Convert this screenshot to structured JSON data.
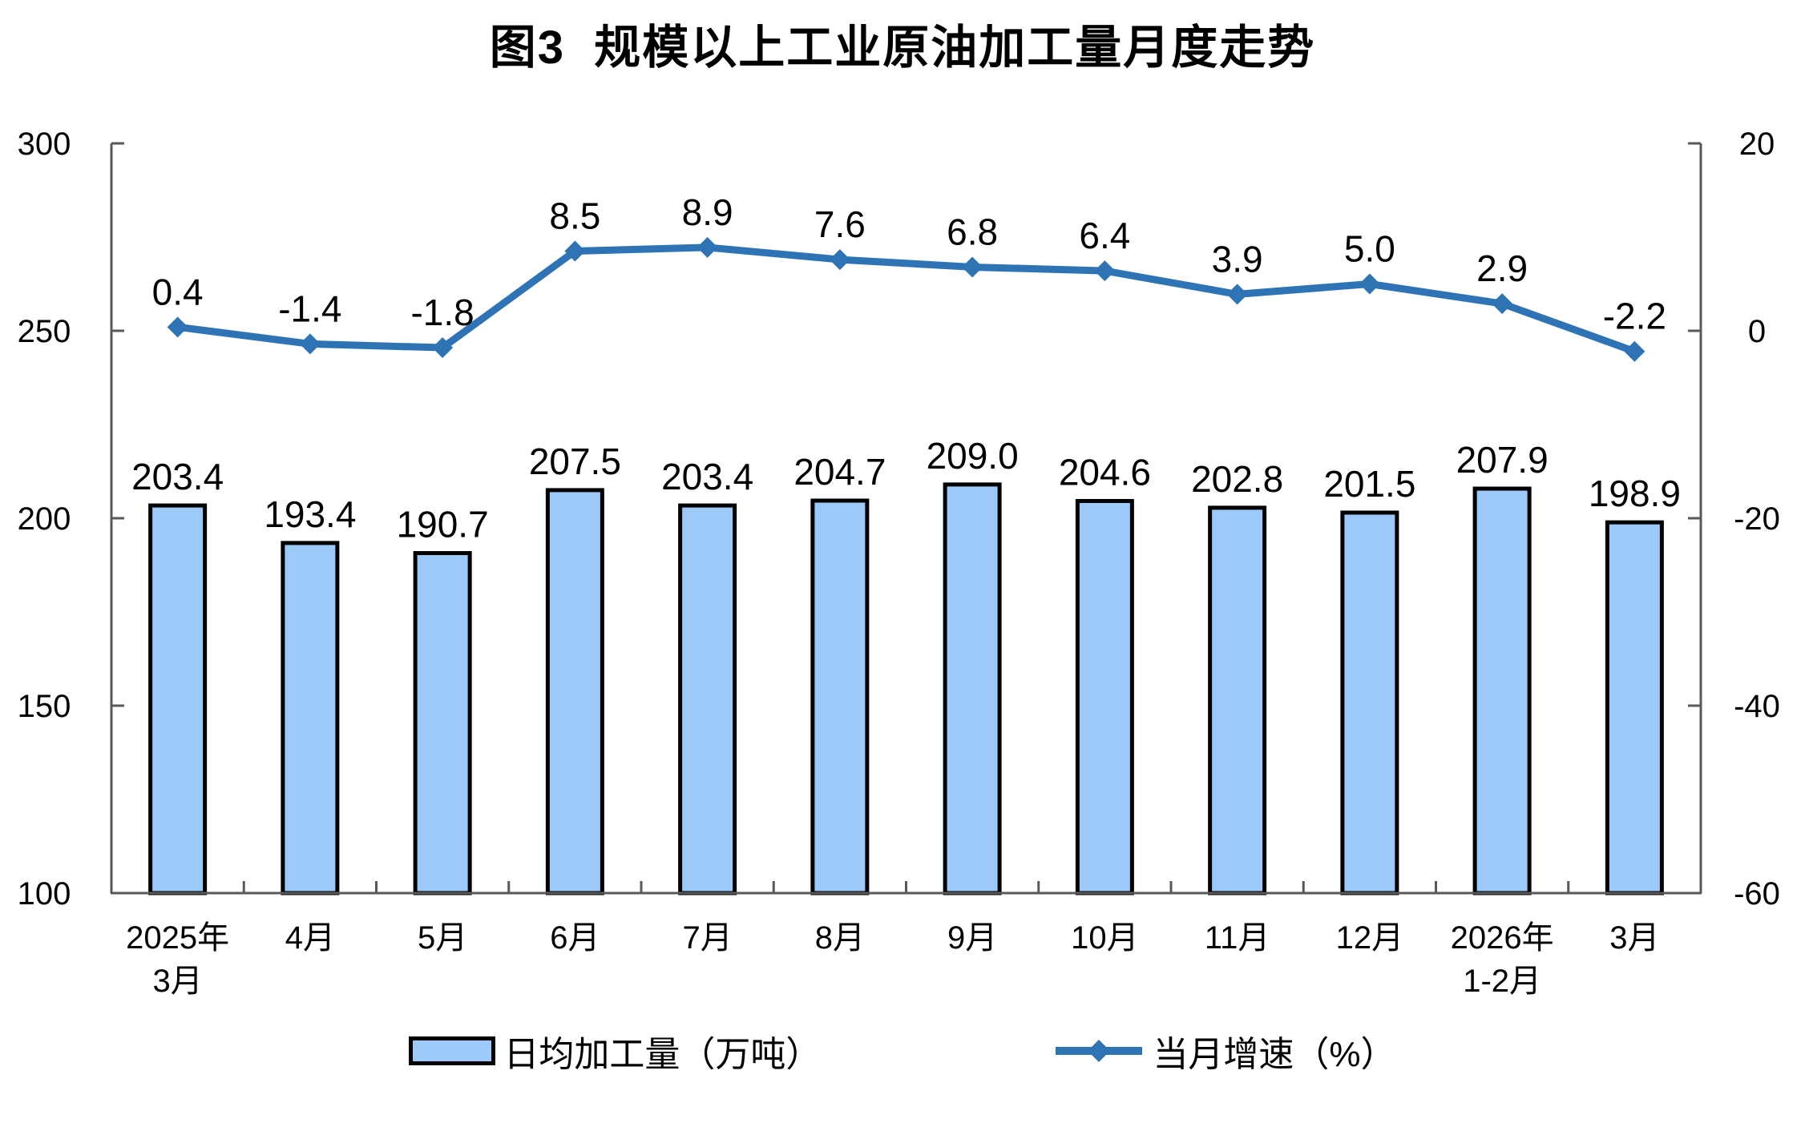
{
  "title": "图3  规模以上工业原油加工量月度走势",
  "legend": {
    "bar_label": "日均加工量（万吨）",
    "line_label": "当月增速（%）"
  },
  "colors": {
    "bar_fill": "#9CC9F7",
    "bar_border": "#000000",
    "line": "#2E74B5",
    "axis": "#595959",
    "text": "#000000",
    "background": "#ffffff"
  },
  "chart_data": {
    "type": "bar",
    "title": "图3  规模以上工业原油加工量月度走势",
    "categories": [
      [
        "2025年",
        "3月"
      ],
      [
        "4月"
      ],
      [
        "5月"
      ],
      [
        "6月"
      ],
      [
        "7月"
      ],
      [
        "8月"
      ],
      [
        "9月"
      ],
      [
        "10月"
      ],
      [
        "11月"
      ],
      [
        "12月"
      ],
      [
        "2026年",
        "1-2月"
      ],
      [
        "3月"
      ]
    ],
    "series": [
      {
        "name": "日均加工量（万吨）",
        "type": "bar",
        "axis": "left",
        "values": [
          203.4,
          193.4,
          190.7,
          207.5,
          203.4,
          204.7,
          209.0,
          204.6,
          202.8,
          201.5,
          207.9,
          198.9
        ]
      },
      {
        "name": "当月增速（%）",
        "type": "line",
        "axis": "right",
        "values": [
          0.4,
          -1.4,
          -1.8,
          8.5,
          8.9,
          7.6,
          6.8,
          6.4,
          3.9,
          5.0,
          2.9,
          -2.2
        ]
      }
    ],
    "left_axis": {
      "min": 100,
      "max": 300,
      "ticks": [
        100,
        150,
        200,
        250,
        300
      ]
    },
    "right_axis": {
      "min": -60,
      "max": 20,
      "ticks": [
        -60,
        -40,
        -20,
        0,
        20
      ]
    },
    "grid": "off",
    "legend_position": "bottom",
    "data_labels": "on"
  }
}
